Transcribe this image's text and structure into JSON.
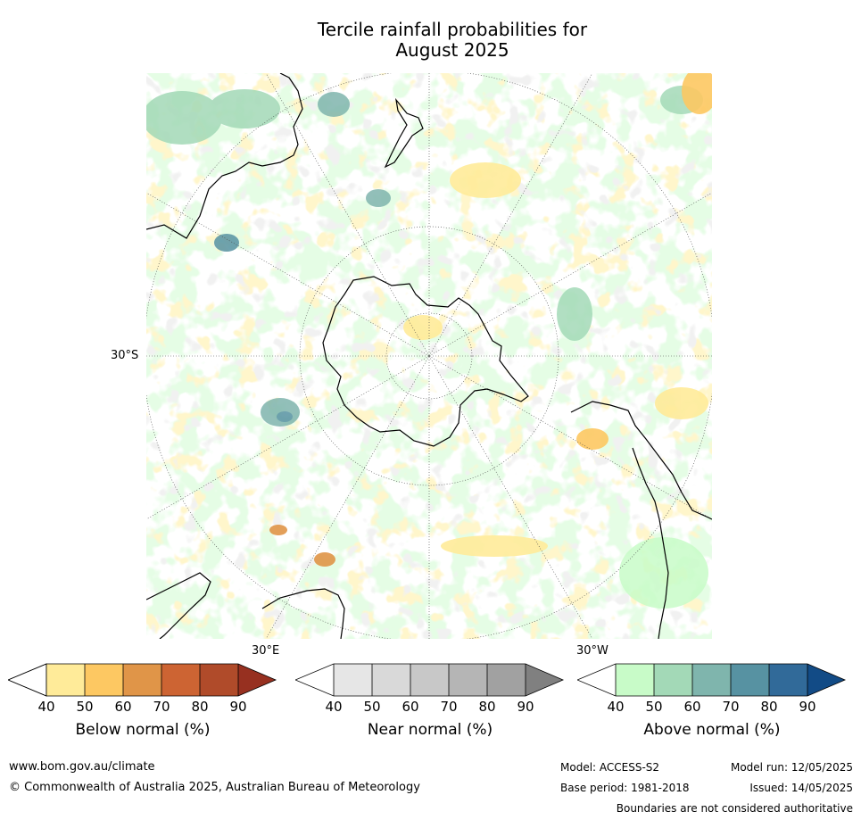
{
  "title_line1": "Tercile rainfall probabilities for",
  "title_line2": "August 2025",
  "map": {
    "lat_label": "30°S",
    "lon_labels": [
      "30°E",
      "30°W"
    ]
  },
  "colorbars": [
    {
      "label": "Below normal (%)",
      "ticks": [
        "40",
        "50",
        "60",
        "70",
        "80",
        "90"
      ],
      "colors": [
        "#fff",
        "#ffeb99",
        "#fdc862",
        "#e09548",
        "#cd6433",
        "#b04b2a",
        "#973020"
      ]
    },
    {
      "label": "Near normal (%)",
      "ticks": [
        "40",
        "50",
        "60",
        "70",
        "80",
        "90"
      ],
      "colors": [
        "#fff",
        "#e6e6e6",
        "#d9d9d9",
        "#c8c8c8",
        "#b5b5b5",
        "#a1a1a1",
        "#808080"
      ]
    },
    {
      "label": "Above normal (%)",
      "ticks": [
        "40",
        "50",
        "60",
        "70",
        "80",
        "90"
      ],
      "colors": [
        "#fff",
        "#c8fbc8",
        "#a3d9b7",
        "#7fb5ad",
        "#5792a2",
        "#316a99",
        "#124b86"
      ]
    }
  ],
  "footer": {
    "website": "www.bom.gov.au/climate",
    "copyright": "© Commonwealth of Australia 2025, Australian Bureau of Meteorology",
    "model": "Model: ACCESS-S2",
    "base_period": "Base period: 1981-2018",
    "model_run": "Model run: 12/05/2025",
    "issued": "Issued: 14/05/2025",
    "disclaimer": "Boundaries are not considered authoritative"
  }
}
